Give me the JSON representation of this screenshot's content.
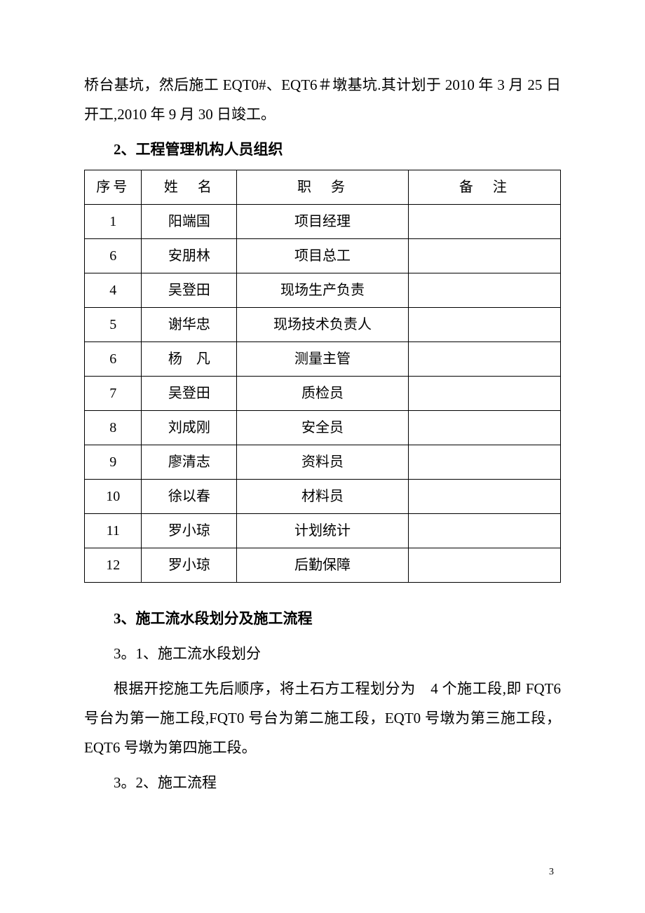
{
  "para1": "桥台基坑，然后施工 EQT0#、EQT6＃墩基坑.其计划于 2010 年 3 月 25 日开工,2010 年 9 月 30 日竣工。",
  "heading2": "2、工程管理机构人员组织",
  "table": {
    "headers": {
      "col1": "序号",
      "col2": "姓　名",
      "col3": "职　务",
      "col4": "备　注"
    },
    "rows": [
      {
        "seq": "1",
        "name": "阳端国",
        "role": "项目经理",
        "note": ""
      },
      {
        "seq": "6",
        "name": "安朋林",
        "role": "项目总工",
        "note": ""
      },
      {
        "seq": "4",
        "name": "吴登田",
        "role": "现场生产负责",
        "note": ""
      },
      {
        "seq": "5",
        "name": "谢华忠",
        "role": "现场技术负责人",
        "note": ""
      },
      {
        "seq": "6",
        "name": "杨　凡",
        "role": "测量主管",
        "note": ""
      },
      {
        "seq": "7",
        "name": "吴登田",
        "role": "质检员",
        "note": ""
      },
      {
        "seq": "8",
        "name": "刘成刚",
        "role": "安全员",
        "note": ""
      },
      {
        "seq": "9",
        "name": "廖清志",
        "role": "资料员",
        "note": ""
      },
      {
        "seq": "10",
        "name": "徐以春",
        "role": "材料员",
        "note": ""
      },
      {
        "seq": "11",
        "name": "罗小琼",
        "role": "计划统计",
        "note": ""
      },
      {
        "seq": "12",
        "name": "罗小琼",
        "role": "后勤保障",
        "note": ""
      }
    ]
  },
  "heading3": "3、施工流水段划分及施工流程",
  "para31_title": "3。1、施工流水段划分",
  "para31_body": "根据开挖施工先后顺序，将土石方工程划分为　4 个施工段,即 FQT6 号台为第一施工段,FQT0 号台为第二施工段，EQT0 号墩为第三施工段，EQT6 号墩为第四施工段。",
  "para32_title": "3。2、施工流程",
  "pageNumber": "3",
  "style": {
    "background": "#ffffff",
    "textColor": "#000000",
    "borderColor": "#000000",
    "bodyFontSize": 21,
    "tableFontSize": 20,
    "pageNumFontSize": 14
  }
}
